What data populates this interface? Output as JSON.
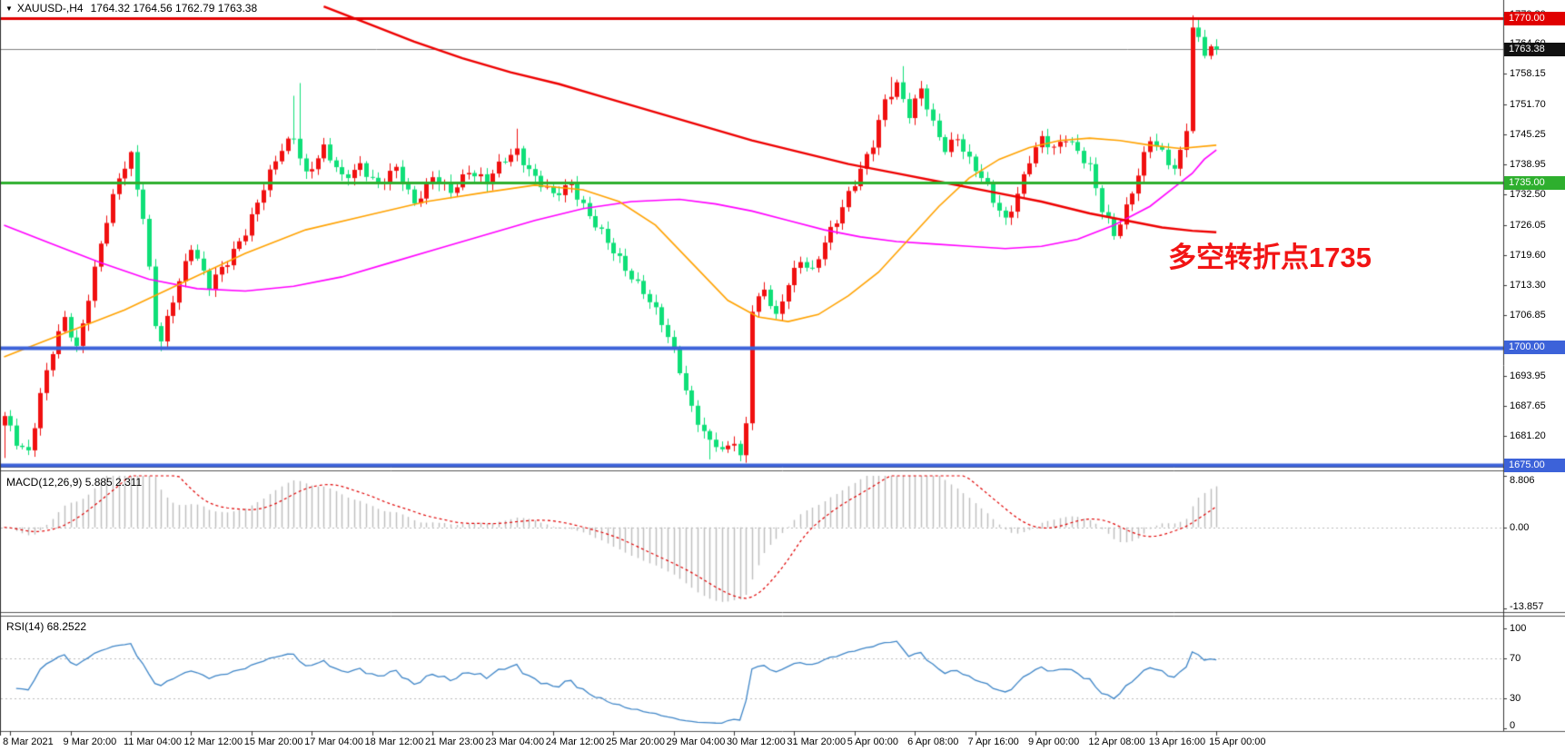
{
  "title": {
    "symbol_period": "XAUUSD-,H4",
    "ohlc": "1764.32 1764.56 1762.79 1763.38"
  },
  "annotation": {
    "text": "多空转折点1735",
    "color": "#F21414"
  },
  "current_price": {
    "label": "1763.38",
    "value": 1763.38,
    "line_color": "#808080",
    "badge_color": "#111111"
  },
  "levels": [
    {
      "price": 1770.0,
      "label": "1770.00",
      "color": "#E00000",
      "width": 3
    },
    {
      "price": 1735.0,
      "label": "1735.00",
      "color": "#2EAF2E",
      "width": 3
    },
    {
      "price": 1700.0,
      "label": "1700.00",
      "color": "#3C62D9",
      "width": 4
    },
    {
      "price": 1675.0,
      "label": "1675.00",
      "color": "#3C62D9",
      "width": 4
    }
  ],
  "price_axis": {
    "ticks": [
      {
        "label": "1770.80",
        "value": 1770.8
      },
      {
        "label": "1764.60",
        "value": 1764.6
      },
      {
        "label": "1758.15",
        "value": 1758.15
      },
      {
        "label": "1751.70",
        "value": 1751.7
      },
      {
        "label": "1745.25",
        "value": 1745.25
      },
      {
        "label": "1738.95",
        "value": 1738.95
      },
      {
        "label": "1732.50",
        "value": 1732.5
      },
      {
        "label": "1726.05",
        "value": 1726.05
      },
      {
        "label": "1719.60",
        "value": 1719.6
      },
      {
        "label": "1713.30",
        "value": 1713.3
      },
      {
        "label": "1706.85",
        "value": 1706.85
      },
      {
        "label": "1693.95",
        "value": 1693.95
      },
      {
        "label": "1687.65",
        "value": 1687.65
      },
      {
        "label": "1681.20",
        "value": 1681.2
      }
    ]
  },
  "time_axis": {
    "labels": [
      "8 Mar 2021",
      "9 Mar 20:00",
      "11 Mar 04:00",
      "12 Mar 12:00",
      "15 Mar 20:00",
      "17 Mar 04:00",
      "18 Mar 12:00",
      "21 Mar 23:00",
      "23 Mar 04:00",
      "24 Mar 12:00",
      "25 Mar 20:00",
      "29 Mar 04:00",
      "30 Mar 12:00",
      "31 Mar 20:00",
      "5 Apr 00:00",
      "6 Apr 08:00",
      "7 Apr 16:00",
      "9 Apr 00:00",
      "12 Apr 08:00",
      "13 Apr 16:00",
      "15 Apr 00:00"
    ],
    "first_bar": 1,
    "bar_step": 10
  },
  "panes": {
    "macd": {
      "label": "MACD(12,26,9) 5.885 2.311",
      "scale": [
        {
          "label": "8.806",
          "value": 8.806
        },
        {
          "label": "0.00",
          "value": 0
        },
        {
          "label": "-13.857",
          "value": -13.857
        }
      ]
    },
    "rsi": {
      "label": "RSI(14) 68.2522",
      "scale": [
        {
          "label": "100",
          "value": 100
        },
        {
          "label": "70",
          "value": 70
        },
        {
          "label": "30",
          "value": 30
        },
        {
          "label": "0",
          "value": 0
        }
      ],
      "dashed_levels": [
        70,
        30
      ]
    }
  },
  "chart_data": {
    "type": "candlestick",
    "symbol": "XAUUSD-",
    "timeframe": "H4",
    "bars": 202,
    "price_range_visible": [
      1674.75,
      1772.0
    ],
    "horizontal_levels": [
      1770.0,
      1735.0,
      1700.0,
      1675.0
    ],
    "last_price": 1763.38,
    "close_anchors": [
      [
        0,
        1685
      ],
      [
        2,
        1680
      ],
      [
        4,
        1678
      ],
      [
        6,
        1690
      ],
      [
        8,
        1699
      ],
      [
        10,
        1706
      ],
      [
        12,
        1700
      ],
      [
        14,
        1711
      ],
      [
        16,
        1722
      ],
      [
        19,
        1736
      ],
      [
        21,
        1741
      ],
      [
        23,
        1728
      ],
      [
        25,
        1705
      ],
      [
        26,
        1701
      ],
      [
        28,
        1710
      ],
      [
        31,
        1722
      ],
      [
        34,
        1713
      ],
      [
        37,
        1718
      ],
      [
        40,
        1725
      ],
      [
        43,
        1734
      ],
      [
        46,
        1742
      ],
      [
        48,
        1745
      ],
      [
        50,
        1737
      ],
      [
        53,
        1742
      ],
      [
        56,
        1736
      ],
      [
        59,
        1739
      ],
      [
        62,
        1734
      ],
      [
        65,
        1738
      ],
      [
        68,
        1731
      ],
      [
        71,
        1736
      ],
      [
        74,
        1733
      ],
      [
        77,
        1738
      ],
      [
        80,
        1735
      ],
      [
        83,
        1740
      ],
      [
        85,
        1742
      ],
      [
        88,
        1736
      ],
      [
        91,
        1732
      ],
      [
        94,
        1735
      ],
      [
        97,
        1728
      ],
      [
        100,
        1722
      ],
      [
        103,
        1717
      ],
      [
        106,
        1712
      ],
      [
        109,
        1705
      ],
      [
        111,
        1699
      ],
      [
        113,
        1691
      ],
      [
        115,
        1684
      ],
      [
        117,
        1680
      ],
      [
        119,
        1678
      ],
      [
        121,
        1680
      ],
      [
        122,
        1677
      ],
      [
        123,
        1684
      ],
      [
        124,
        1708
      ],
      [
        126,
        1712
      ],
      [
        128,
        1706
      ],
      [
        130,
        1714
      ],
      [
        132,
        1719
      ],
      [
        134,
        1716
      ],
      [
        136,
        1722
      ],
      [
        138,
        1727
      ],
      [
        140,
        1733
      ],
      [
        142,
        1738
      ],
      [
        144,
        1743
      ],
      [
        146,
        1752
      ],
      [
        148,
        1756
      ],
      [
        150,
        1750
      ],
      [
        152,
        1755
      ],
      [
        154,
        1747
      ],
      [
        156,
        1742
      ],
      [
        158,
        1745
      ],
      [
        160,
        1740
      ],
      [
        162,
        1736
      ],
      [
        164,
        1731
      ],
      [
        166,
        1727
      ],
      [
        168,
        1733
      ],
      [
        170,
        1740
      ],
      [
        172,
        1744
      ],
      [
        174,
        1742
      ],
      [
        176,
        1745
      ],
      [
        178,
        1742
      ],
      [
        180,
        1738
      ],
      [
        182,
        1729
      ],
      [
        184,
        1724
      ],
      [
        186,
        1730
      ],
      [
        188,
        1737
      ],
      [
        190,
        1744
      ],
      [
        192,
        1741
      ],
      [
        194,
        1738
      ],
      [
        195,
        1742
      ],
      [
        196,
        1746
      ],
      [
        197,
        1768
      ],
      [
        198,
        1766
      ],
      [
        199,
        1762
      ],
      [
        200,
        1764
      ],
      [
        201,
        1763.4
      ]
    ],
    "wick_overrides": [
      {
        "bar": 0,
        "low": 1676.5
      },
      {
        "bar": 21,
        "high": 1741.8
      },
      {
        "bar": 26,
        "low": 1699.2
      },
      {
        "bar": 48,
        "high": 1753.5
      },
      {
        "bar": 49,
        "high": 1756.2
      },
      {
        "bar": 85,
        "high": 1746.5
      },
      {
        "bar": 117,
        "low": 1676.2
      },
      {
        "bar": 122,
        "low": 1675.8
      },
      {
        "bar": 147,
        "high": 1757.5
      },
      {
        "bar": 149,
        "high": 1759.8
      },
      {
        "bar": 197,
        "high": 1770.6,
        "low": 1745.5
      },
      {
        "bar": 198,
        "high": 1769.8
      }
    ],
    "moving_averages": [
      {
        "name": "ma-magenta",
        "color": "#FF00FF",
        "width": 1.6,
        "points": [
          [
            0,
            1726
          ],
          [
            8,
            1722
          ],
          [
            16,
            1718
          ],
          [
            24,
            1714.5
          ],
          [
            32,
            1712.5
          ],
          [
            40,
            1712
          ],
          [
            48,
            1713
          ],
          [
            56,
            1715
          ],
          [
            64,
            1718
          ],
          [
            72,
            1721
          ],
          [
            80,
            1724
          ],
          [
            88,
            1727
          ],
          [
            96,
            1729.5
          ],
          [
            104,
            1731
          ],
          [
            112,
            1731.5
          ],
          [
            118,
            1730.5
          ],
          [
            124,
            1729
          ],
          [
            130,
            1727
          ],
          [
            136,
            1725
          ],
          [
            142,
            1723.5
          ],
          [
            148,
            1722.5
          ],
          [
            154,
            1722
          ],
          [
            160,
            1721.5
          ],
          [
            166,
            1721
          ],
          [
            172,
            1721.5
          ],
          [
            178,
            1723
          ],
          [
            184,
            1726
          ],
          [
            190,
            1730
          ],
          [
            194,
            1734
          ],
          [
            197,
            1737
          ],
          [
            199,
            1740
          ],
          [
            201,
            1742
          ]
        ]
      },
      {
        "name": "ma-orange",
        "color": "#FFA200",
        "width": 1.6,
        "points": [
          [
            0,
            1698
          ],
          [
            10,
            1703
          ],
          [
            20,
            1708
          ],
          [
            30,
            1714
          ],
          [
            40,
            1720
          ],
          [
            50,
            1725
          ],
          [
            60,
            1728
          ],
          [
            70,
            1731
          ],
          [
            80,
            1733
          ],
          [
            88,
            1734.5
          ],
          [
            96,
            1733.5
          ],
          [
            102,
            1731
          ],
          [
            108,
            1726
          ],
          [
            114,
            1718
          ],
          [
            120,
            1710
          ],
          [
            125,
            1706.5
          ],
          [
            130,
            1705.5
          ],
          [
            135,
            1707
          ],
          [
            140,
            1711
          ],
          [
            145,
            1716
          ],
          [
            150,
            1723
          ],
          [
            155,
            1730
          ],
          [
            160,
            1736
          ],
          [
            165,
            1740
          ],
          [
            170,
            1742.5
          ],
          [
            175,
            1744
          ],
          [
            180,
            1744.5
          ],
          [
            185,
            1744
          ],
          [
            190,
            1743
          ],
          [
            195,
            1742.3
          ],
          [
            201,
            1743
          ]
        ]
      },
      {
        "name": "ma-red",
        "color": "#EE0000",
        "width": 2.4,
        "points": [
          [
            53,
            1772.5
          ],
          [
            60,
            1769
          ],
          [
            68,
            1765
          ],
          [
            76,
            1761.5
          ],
          [
            84,
            1758.5
          ],
          [
            92,
            1756
          ],
          [
            100,
            1753
          ],
          [
            108,
            1750
          ],
          [
            116,
            1747
          ],
          [
            124,
            1744
          ],
          [
            132,
            1741.5
          ],
          [
            140,
            1739
          ],
          [
            148,
            1737
          ],
          [
            156,
            1735
          ],
          [
            164,
            1733
          ],
          [
            172,
            1731
          ],
          [
            180,
            1728.5
          ],
          [
            186,
            1727
          ],
          [
            192,
            1725.5
          ],
          [
            197,
            1724.8
          ],
          [
            201,
            1724.5
          ]
        ]
      }
    ],
    "indicators": {
      "macd": {
        "fast": 12,
        "slow": 26,
        "signal": 9,
        "main_value": 5.885,
        "signal_value": 2.311,
        "scale_max": 8.806,
        "scale_min": -13.857,
        "histogram_color": "#BDBDBD",
        "signal_color": "#E00000"
      },
      "rsi": {
        "period": 14,
        "value": 68.2522,
        "line_color": "#3F86C8",
        "levels": [
          70,
          30
        ]
      }
    },
    "colors": {
      "up_candle": "#F01010",
      "down_candle": "#0FDF78",
      "background": "#FFFFFF"
    }
  }
}
